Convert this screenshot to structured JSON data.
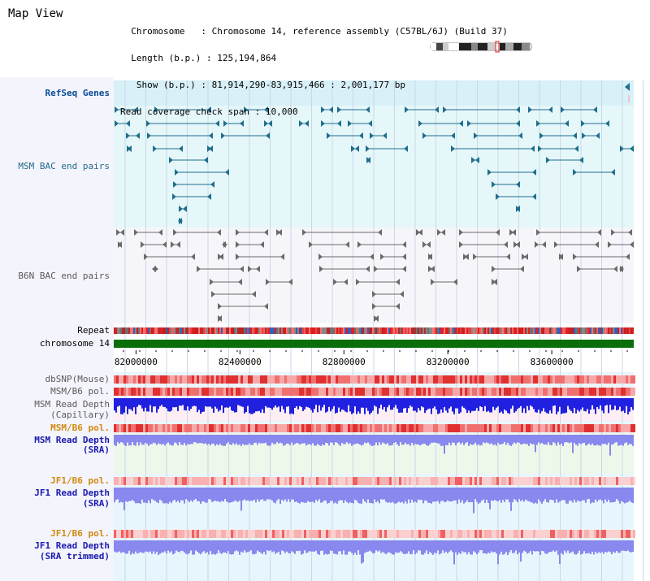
{
  "title": "Map View",
  "info": {
    "chromosome_key": "Chromosome",
    "chromosome_val": "Chromosome 14, reference assembly (C57BL/6J) (Build 37)",
    "length_key": "Length (b.p.)",
    "length_val": "125,194,864",
    "show_key": "Show (b.p.)",
    "show_val": "81,914,290-83,915,466 : 2,001,177 bp",
    "coverage_key": "Read coverage check span",
    "coverage_val": "10,000"
  },
  "tracks": {
    "refseq": "RefSeq Genes",
    "msm_bac": "MSM BAC end pairs",
    "b6n_bac": "B6N BAC end pairs",
    "repeat": "Repeat",
    "chromosome": "chromosome 14",
    "dbsnp": "dbSNP(Mouse)",
    "msm_b6_pol_1": "MSM/B6 pol.",
    "msm_read_depth_cap_1": "MSM Read Depth",
    "msm_read_depth_cap_2": "(Capillary)",
    "msm_b6_pol_2": "MSM/B6 pol.",
    "msm_read_depth_sra_1": "MSM Read Depth",
    "msm_read_depth_sra_2": "(SRA)",
    "jf1_b6_pol_1": "JF1/B6 pol.",
    "jf1_read_depth_sra_1": "JF1 Read Depth",
    "jf1_read_depth_sra_2": "(SRA)",
    "jf1_b6_pol_2": "JF1/B6 pol.",
    "jf1_read_depth_trim_1": "JF1 Read Depth",
    "jf1_read_depth_trim_2": "(SRA trimmed)"
  },
  "axis": {
    "ticks": [
      "82000000",
      "82400000",
      "82800000",
      "83200000",
      "83600000"
    ],
    "tick_values": [
      82000000,
      82400000,
      82800000,
      83200000,
      83600000
    ],
    "range": [
      81914290,
      83915466
    ]
  },
  "colors": {
    "refseq_bg": "#d8f0f8",
    "msm_bg": "#e6f7fa",
    "b6n_bg": "#f6f6fa",
    "feature_teal": "#1f6e8c",
    "feature_gray": "#6a6a6a",
    "chromosome_bar": "#0a6e0a",
    "depth_dark": "#2020e0",
    "depth_light": "#8888ee",
    "pol_red": "#e84040"
  }
}
